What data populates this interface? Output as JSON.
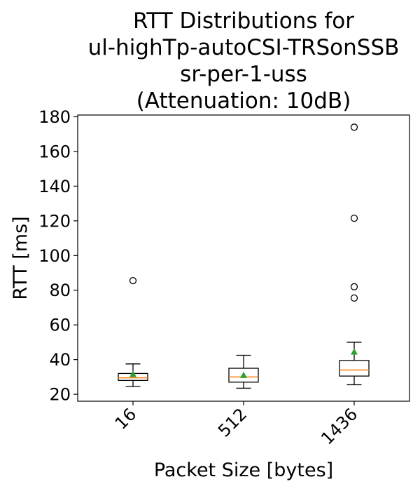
{
  "chart_data": {
    "type": "boxplot",
    "title_lines": [
      "RTT Distributions for",
      "ul-highTp-autoCSI-TRSonSSB",
      "sr-per-1-uss",
      "(Attenuation: 10dB)"
    ],
    "xlabel": "Packet Size [bytes]",
    "ylabel": "RTT [ms]",
    "ylim": [
      16,
      181
    ],
    "yticks": [
      20,
      40,
      60,
      80,
      100,
      120,
      140,
      160,
      180
    ],
    "categories": [
      "16",
      "512",
      "1436"
    ],
    "boxes": [
      {
        "category": "16",
        "whisker_low": 24.5,
        "q1": 28,
        "median": 29.5,
        "q3": 32,
        "whisker_high": 37.5,
        "mean": 31.5,
        "outliers": [
          85.5
        ]
      },
      {
        "category": "512",
        "whisker_low": 23.5,
        "q1": 27,
        "median": 30,
        "q3": 35,
        "whisker_high": 42.5,
        "mean": 31,
        "outliers": []
      },
      {
        "category": "1436",
        "whisker_low": 25.5,
        "q1": 30.5,
        "median": 34,
        "q3": 39.5,
        "whisker_high": 50,
        "mean": 44.5,
        "outliers": [
          75.5,
          82,
          121.5,
          174
        ]
      }
    ],
    "colors": {
      "box": "#000000",
      "median": "#ff7f0e",
      "mean": "#2ca02c",
      "outlier": "#000000"
    },
    "grid": false,
    "legend": "none"
  }
}
